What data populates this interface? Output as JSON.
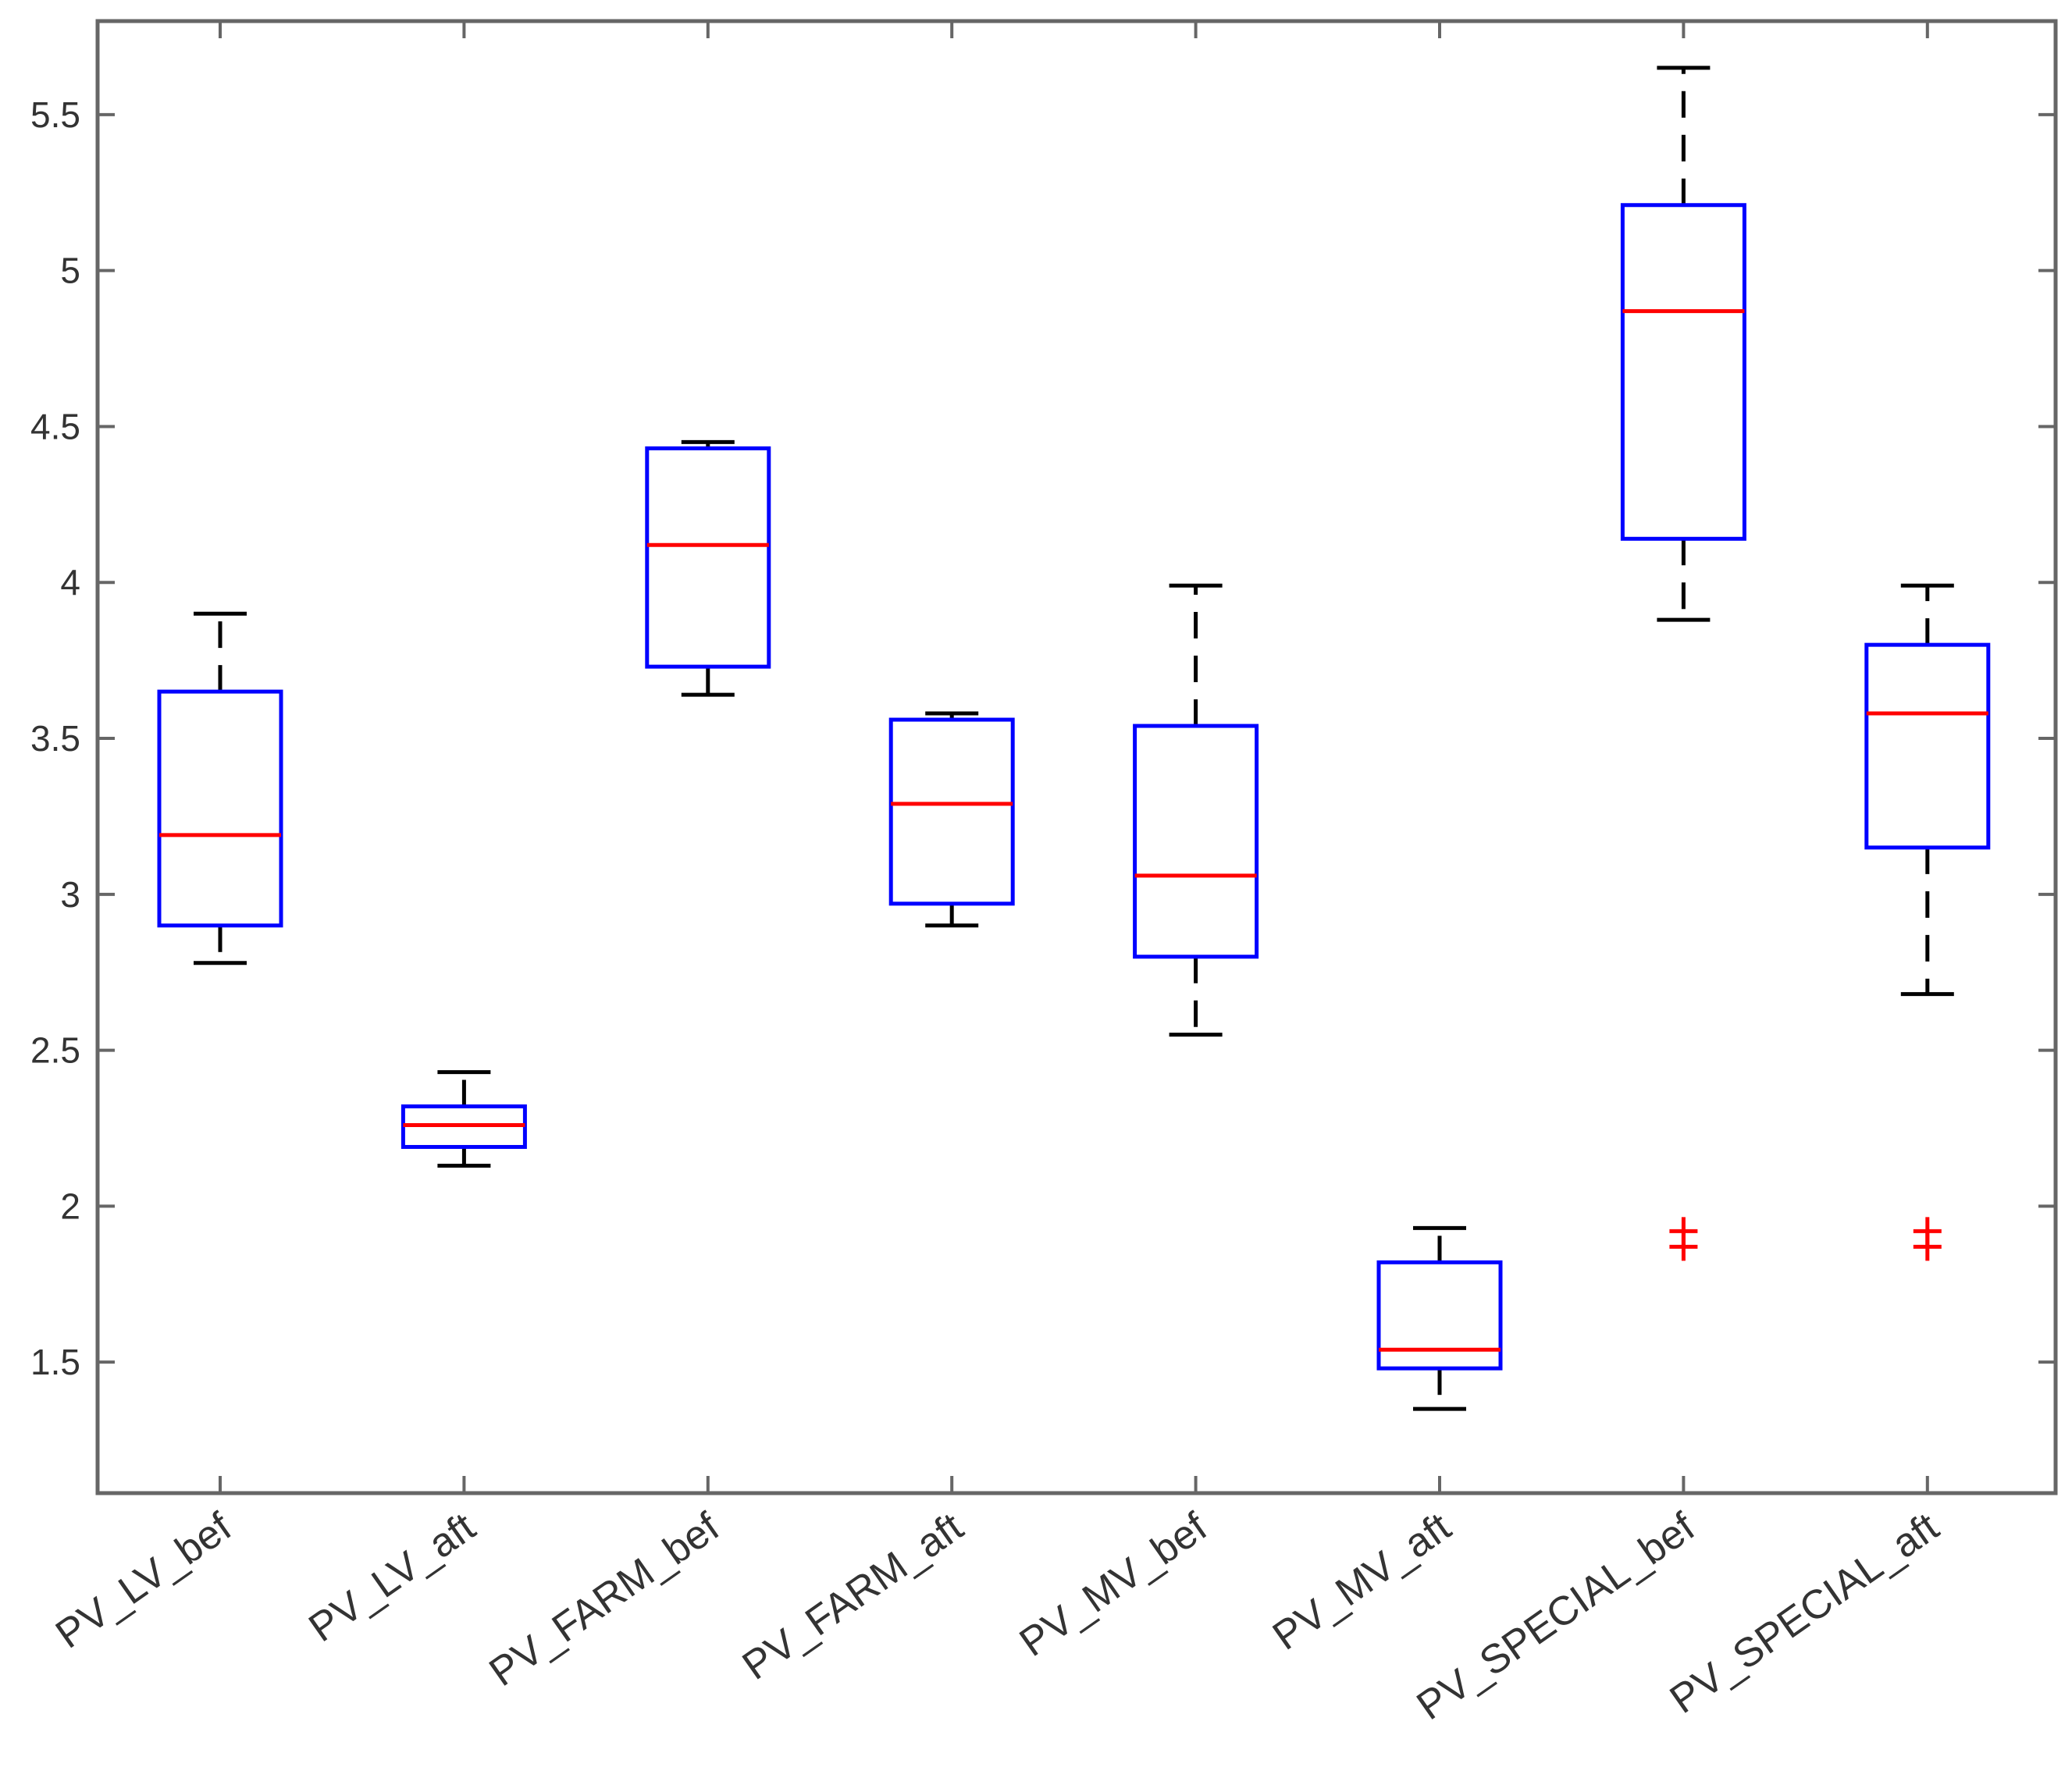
{
  "chart_data": {
    "type": "boxplot",
    "title": "",
    "xlabel": "",
    "ylabel": "",
    "ylim": [
      1.08,
      5.8
    ],
    "yticks": [
      "1.5",
      "2",
      "2.5",
      "3",
      "3.5",
      "4",
      "4.5",
      "5",
      "5.5"
    ],
    "grid": false,
    "categories": [
      "PV_LV_bef",
      "PV_LV_aft",
      "PV_FARM_bef",
      "PV_FARM_aft",
      "PV_MV_bef",
      "PV_MV_aft",
      "PV_SPECIAL_bef",
      "PV_SPECIAL_aft"
    ],
    "boxes": [
      {
        "name": "PV_LV_bef",
        "whisker_low": 2.78,
        "q1": 2.9,
        "median": 3.19,
        "q3": 3.65,
        "whisker_high": 3.9,
        "outliers": []
      },
      {
        "name": "PV_LV_aft",
        "whisker_low": 2.13,
        "q1": 2.19,
        "median": 2.26,
        "q3": 2.32,
        "whisker_high": 2.43,
        "outliers": []
      },
      {
        "name": "PV_FARM_bef",
        "whisker_low": 3.64,
        "q1": 3.73,
        "median": 4.12,
        "q3": 4.43,
        "whisker_high": 4.45,
        "outliers": []
      },
      {
        "name": "PV_FARM_aft",
        "whisker_low": 2.9,
        "q1": 2.97,
        "median": 3.29,
        "q3": 3.56,
        "whisker_high": 3.58,
        "outliers": []
      },
      {
        "name": "PV_MV_bef",
        "whisker_low": 2.55,
        "q1": 2.8,
        "median": 3.06,
        "q3": 3.54,
        "whisker_high": 3.99,
        "outliers": []
      },
      {
        "name": "PV_MV_aft",
        "whisker_low": 1.35,
        "q1": 1.48,
        "median": 1.54,
        "q3": 1.82,
        "whisker_high": 1.93,
        "outliers": []
      },
      {
        "name": "PV_SPECIAL_bef",
        "whisker_low": 3.88,
        "q1": 4.14,
        "median": 4.87,
        "q3": 5.21,
        "whisker_high": 5.65,
        "outliers": [
          1.92,
          1.87
        ]
      },
      {
        "name": "PV_SPECIAL_aft",
        "whisker_low": 2.68,
        "q1": 3.15,
        "median": 3.58,
        "q3": 3.8,
        "whisker_high": 3.99,
        "outliers": [
          1.92,
          1.87
        ]
      }
    ],
    "colors": {
      "box": "#0000ff",
      "median": "#ff0000",
      "whisker": "#000000",
      "outlier": "#ff0000",
      "axis": "#666666",
      "tick_text": "#333333"
    }
  }
}
